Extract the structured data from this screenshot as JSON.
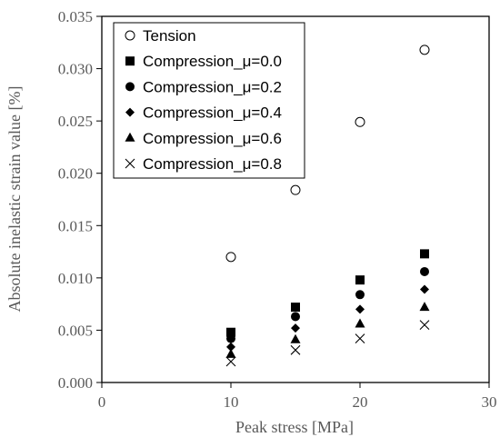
{
  "chart_data": {
    "type": "scatter",
    "xlabel": "Peak stress [MPa]",
    "ylabel": "Absolute inelastic strain value [%]",
    "xlim": [
      0,
      30
    ],
    "ylim": [
      0,
      0.035
    ],
    "xticks": [
      "0",
      "10",
      "20",
      "30"
    ],
    "yticks": [
      "0.000",
      "0.005",
      "0.010",
      "0.015",
      "0.020",
      "0.025",
      "0.030",
      "0.035"
    ],
    "grid": false,
    "legend_position": "top-left",
    "series": [
      {
        "name": "Tension",
        "marker": "circle-open",
        "x": [
          10,
          15,
          20,
          25
        ],
        "y": [
          0.012,
          0.0184,
          0.0249,
          0.0318
        ]
      },
      {
        "name": "Compression_μ=0.0",
        "marker": "square",
        "x": [
          10,
          15,
          20,
          25
        ],
        "y": [
          0.0048,
          0.0072,
          0.0098,
          0.0123
        ]
      },
      {
        "name": "Compression_μ=0.2",
        "marker": "circle",
        "x": [
          10,
          15,
          20,
          25
        ],
        "y": [
          0.0042,
          0.0063,
          0.0084,
          0.0106
        ]
      },
      {
        "name": "Compression_μ=0.4",
        "marker": "diamond",
        "x": [
          10,
          15,
          20,
          25
        ],
        "y": [
          0.0034,
          0.0052,
          0.007,
          0.0089
        ]
      },
      {
        "name": "Compression_μ=0.6",
        "marker": "triangle",
        "x": [
          10,
          15,
          20,
          25
        ],
        "y": [
          0.0027,
          0.0041,
          0.0056,
          0.0072
        ]
      },
      {
        "name": "Compression_μ=0.8",
        "marker": "x",
        "x": [
          10,
          15,
          20,
          25
        ],
        "y": [
          0.002,
          0.0031,
          0.0042,
          0.0055
        ]
      }
    ]
  }
}
